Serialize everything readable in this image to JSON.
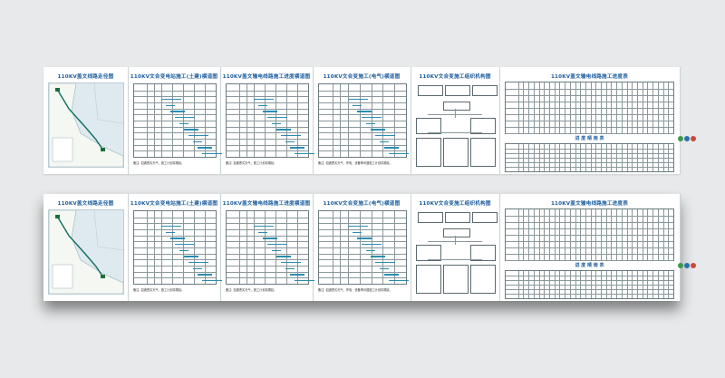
{
  "boards": [
    "top-board",
    "bottom-board"
  ],
  "panels": {
    "route_map": {
      "title": "110KV盖文线路走径图"
    },
    "substation_civil": {
      "title": "110KV文合变电站施工(土建)横道图",
      "note": "备注: 如遇恶劣天气，施工计划将顺延。"
    },
    "line_progress": {
      "title": "110KV盖文输电线路施工进度横道图",
      "note": "备注: 如遇恶劣天气，施工计划将顺延。"
    },
    "substation_electric": {
      "title": "110KV文合变施工(电气)横道图",
      "note": "备注: 如遇恶劣天气、停电、设备等问题施工计划将顺延。"
    },
    "organization": {
      "title": "110KV文合变施工组织机构图"
    },
    "progress_table": {
      "title": "110KV盖文输电线路施工进度表",
      "subtitle": "进 度 晴 雨 表"
    }
  },
  "colors": {
    "title": "#1b5c9e",
    "bar": "#2b8cb0",
    "dot_green": "#3a9a4a",
    "dot_blue": "#2f6fae",
    "dot_red": "#c94a3a"
  }
}
